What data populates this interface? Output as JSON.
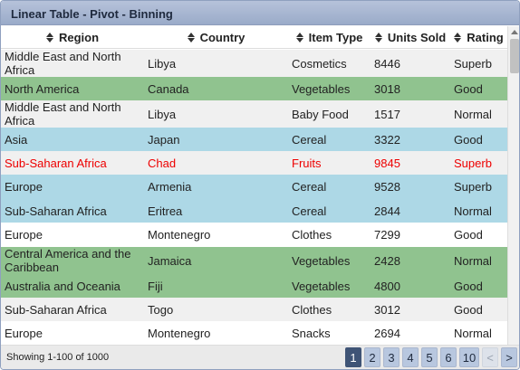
{
  "window": {
    "title": "Linear Table - Pivot - Binning"
  },
  "columns": [
    {
      "key": "region",
      "label": "Region"
    },
    {
      "key": "country",
      "label": "Country"
    },
    {
      "key": "item_type",
      "label": "Item Type"
    },
    {
      "key": "units_sold",
      "label": "Units Sold"
    },
    {
      "key": "rating",
      "label": "Rating"
    }
  ],
  "rows": [
    {
      "region": "Middle East and North Africa",
      "country": "Libya",
      "item_type": "Cosmetics",
      "units_sold": "8446",
      "rating": "Superb",
      "bg": "#f0f0f0",
      "fg": "#222222"
    },
    {
      "region": "North America",
      "country": "Canada",
      "item_type": "Vegetables",
      "units_sold": "3018",
      "rating": "Good",
      "bg": "#90c38f",
      "fg": "#222222"
    },
    {
      "region": "Middle East and North Africa",
      "country": "Libya",
      "item_type": "Baby Food",
      "units_sold": "1517",
      "rating": "Normal",
      "bg": "#f0f0f0",
      "fg": "#222222"
    },
    {
      "region": "Asia",
      "country": "Japan",
      "item_type": "Cereal",
      "units_sold": "3322",
      "rating": "Good",
      "bg": "#add8e6",
      "fg": "#222222"
    },
    {
      "region": "Sub-Saharan Africa",
      "country": "Chad",
      "item_type": "Fruits",
      "units_sold": "9845",
      "rating": "Superb",
      "bg": "#f0f0f0",
      "fg": "#ee0000"
    },
    {
      "region": "Europe",
      "country": "Armenia",
      "item_type": "Cereal",
      "units_sold": "9528",
      "rating": "Superb",
      "bg": "#add8e6",
      "fg": "#222222"
    },
    {
      "region": "Sub-Saharan Africa",
      "country": "Eritrea",
      "item_type": "Cereal",
      "units_sold": "2844",
      "rating": "Normal",
      "bg": "#add8e6",
      "fg": "#222222"
    },
    {
      "region": "Europe",
      "country": "Montenegro",
      "item_type": "Clothes",
      "units_sold": "7299",
      "rating": "Good",
      "bg": "#ffffff",
      "fg": "#222222"
    },
    {
      "region": "Central America and the Caribbean",
      "country": "Jamaica",
      "item_type": "Vegetables",
      "units_sold": "2428",
      "rating": "Normal",
      "bg": "#90c38f",
      "fg": "#222222"
    },
    {
      "region": "Australia and Oceania",
      "country": "Fiji",
      "item_type": "Vegetables",
      "units_sold": "4800",
      "rating": "Good",
      "bg": "#90c38f",
      "fg": "#222222"
    },
    {
      "region": "Sub-Saharan Africa",
      "country": "Togo",
      "item_type": "Clothes",
      "units_sold": "3012",
      "rating": "Good",
      "bg": "#f0f0f0",
      "fg": "#222222"
    },
    {
      "region": "Europe",
      "country": "Montenegro",
      "item_type": "Snacks",
      "units_sold": "2694",
      "rating": "Normal",
      "bg": "#ffffff",
      "fg": "#222222"
    }
  ],
  "footer": {
    "status": "Showing 1-100 of 1000",
    "pages": [
      "1",
      "2",
      "3",
      "4",
      "5",
      "6",
      "10"
    ],
    "active_page": "1",
    "prev_label": "<",
    "next_label": ">"
  },
  "icons": {
    "sort": "sort-icon"
  }
}
